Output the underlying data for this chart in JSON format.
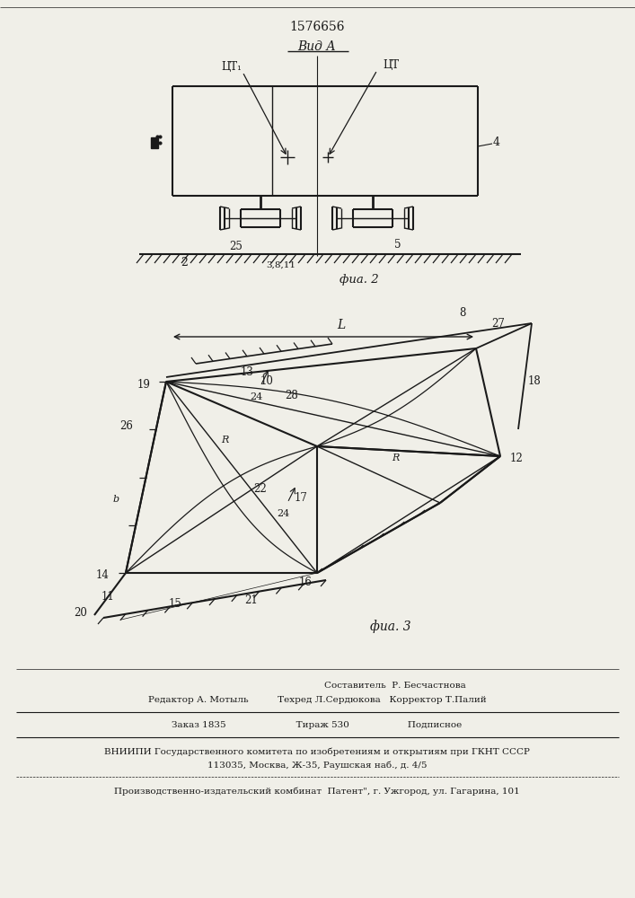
{
  "patent_number": "1576656",
  "view_label": "Вид А",
  "fig2_label": "фиа. 2",
  "fig3_label": "фиа. 3",
  "bg_color": "#f0efe8",
  "line_color": "#1a1a1a",
  "footer_lines": [
    "Составитель  Р. Бесчастнова",
    "Редактор А. Мотыль          Техред Л.Сердюкова   Корректор Т.Палий",
    "Заказ 1835                        Тираж 530                    Подписное",
    "ВНИИПИ Государственного комитета по изобретениям и открытиям при ГКНТ СССР",
    "113035, Москва, Ж-35, Раушская наб., д. 4/5",
    "Производственно-издательский комбинат  Патент\", г. Ужгород, ул. Гагарина, 101"
  ]
}
